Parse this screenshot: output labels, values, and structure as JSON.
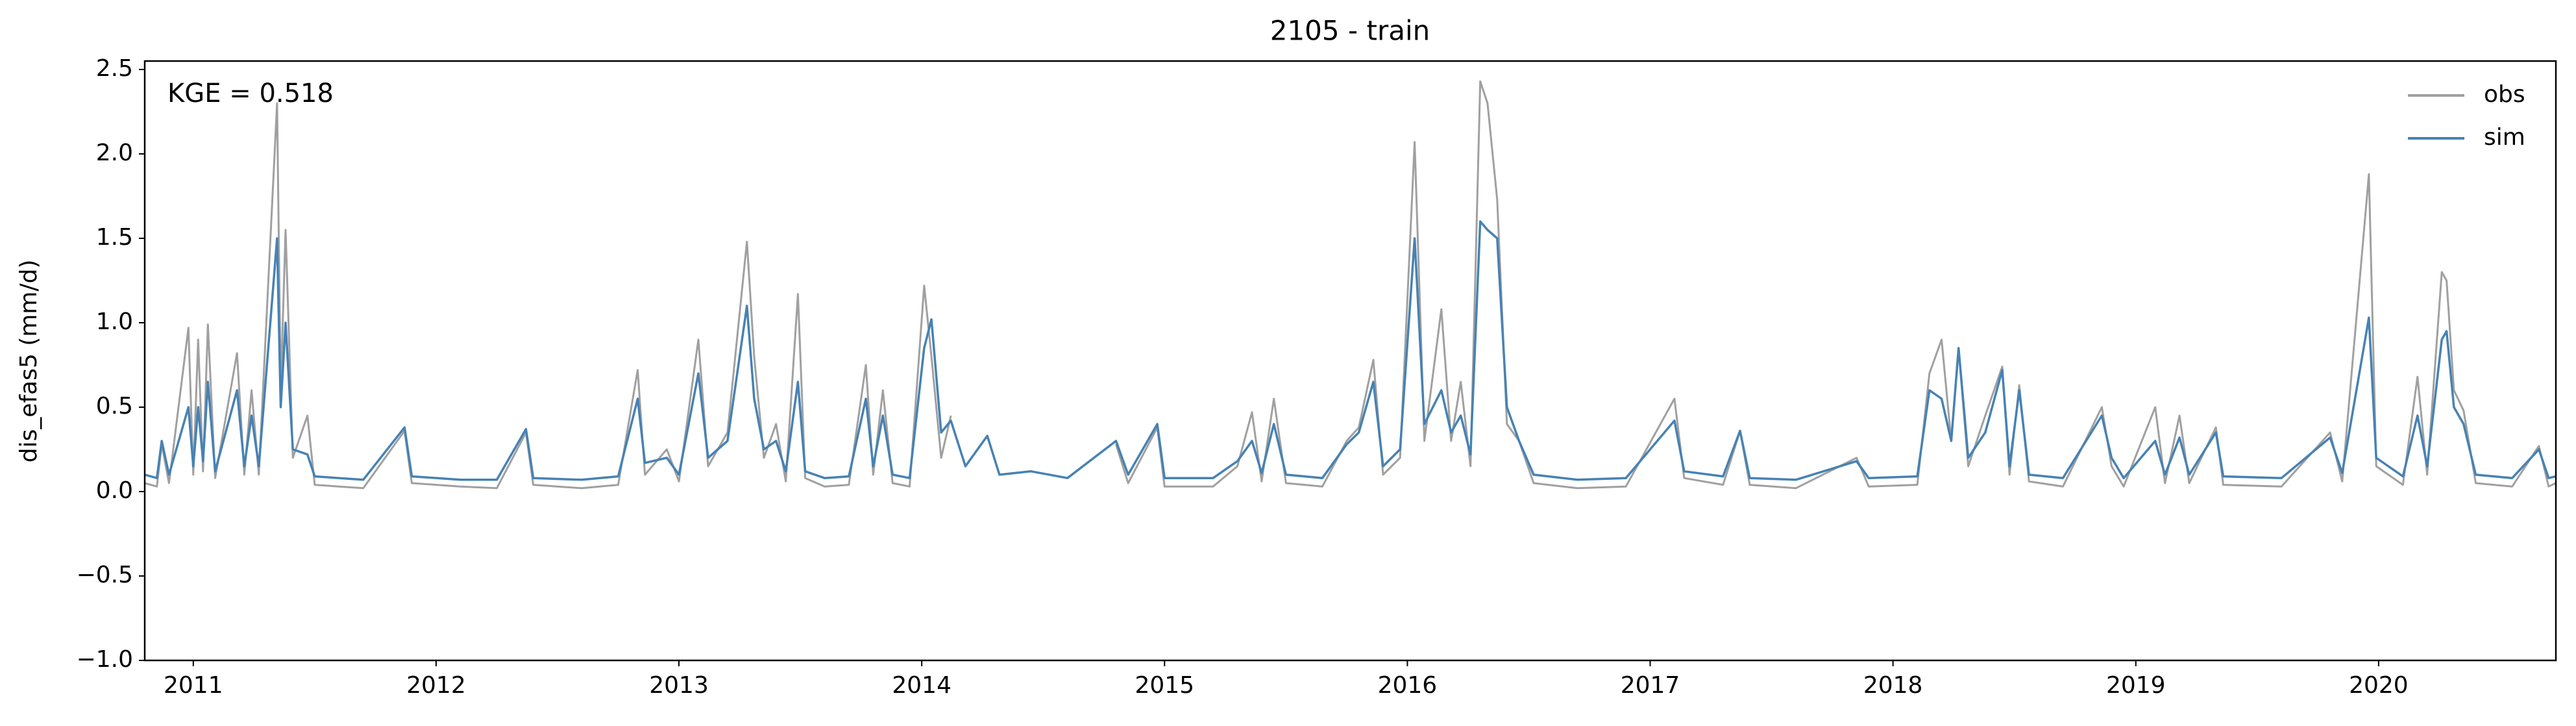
{
  "chart_data": {
    "type": "line",
    "title": "2105 - train",
    "ylabel": "dis_efas5 (mm/d)",
    "annotation": "KGE = 0.518",
    "legend": "upper right",
    "x": [
      2010.8,
      2010.85,
      2010.87,
      2010.9,
      2010.98,
      2011.0,
      2011.02,
      2011.04,
      2011.06,
      2011.09,
      2011.18,
      2011.21,
      2011.24,
      2011.27,
      2011.345,
      2011.36,
      2011.38,
      2011.41,
      2011.47,
      2011.5,
      2011.6,
      2011.7,
      2011.87,
      2011.9,
      2012.1,
      2012.25,
      2012.37,
      2012.4,
      2012.6,
      2012.75,
      2012.83,
      2012.86,
      2012.95,
      2013.0,
      2013.08,
      2013.12,
      2013.2,
      2013.28,
      2013.31,
      2013.35,
      2013.4,
      2013.44,
      2013.49,
      2013.52,
      2013.6,
      2013.7,
      2013.77,
      2013.8,
      2013.84,
      2013.88,
      2013.95,
      2014.01,
      2014.04,
      2014.08,
      2014.12,
      2014.18,
      2014.27,
      2014.32,
      2014.45,
      2014.6,
      2014.8,
      2014.85,
      2014.97,
      2015.0,
      2015.2,
      2015.3,
      2015.36,
      2015.4,
      2015.45,
      2015.5,
      2015.65,
      2015.75,
      2015.8,
      2015.86,
      2015.9,
      2015.97,
      2016.03,
      2016.07,
      2016.14,
      2016.18,
      2016.22,
      2016.26,
      2016.3,
      2016.33,
      2016.37,
      2016.41,
      2016.46,
      2016.52,
      2016.7,
      2016.9,
      2017.1,
      2017.14,
      2017.3,
      2017.37,
      2017.41,
      2017.6,
      2017.85,
      2017.9,
      2018.1,
      2018.15,
      2018.2,
      2018.24,
      2018.27,
      2018.31,
      2018.38,
      2018.45,
      2018.48,
      2018.52,
      2018.56,
      2018.7,
      2018.86,
      2018.9,
      2018.95,
      2019.08,
      2019.12,
      2019.18,
      2019.22,
      2019.33,
      2019.36,
      2019.6,
      2019.8,
      2019.85,
      2019.96,
      2019.99,
      2020.1,
      2020.16,
      2020.2,
      2020.26,
      2020.28,
      2020.31,
      2020.35,
      2020.4,
      2020.55,
      2020.66,
      2020.7,
      2020.73
    ],
    "series": [
      {
        "name": "obs",
        "color": "#a0a0a0",
        "values": [
          0.05,
          0.03,
          0.28,
          0.05,
          0.97,
          0.1,
          0.9,
          0.12,
          0.99,
          0.08,
          0.82,
          0.1,
          0.6,
          0.1,
          2.3,
          0.6,
          1.55,
          0.2,
          0.45,
          0.04,
          0.03,
          0.02,
          0.36,
          0.05,
          0.03,
          0.02,
          0.35,
          0.04,
          0.02,
          0.04,
          0.72,
          0.1,
          0.25,
          0.06,
          0.9,
          0.15,
          0.35,
          1.48,
          0.8,
          0.2,
          0.4,
          0.06,
          1.17,
          0.08,
          0.03,
          0.04,
          0.75,
          0.1,
          0.6,
          0.05,
          0.03,
          1.22,
          0.8,
          0.2,
          0.45,
          null,
          null,
          null,
          null,
          null,
          0.28,
          0.05,
          0.38,
          0.03,
          0.03,
          0.15,
          0.47,
          0.06,
          0.55,
          0.05,
          0.03,
          0.3,
          0.38,
          0.78,
          0.1,
          0.2,
          2.07,
          0.3,
          1.08,
          0.3,
          0.65,
          0.15,
          2.43,
          2.3,
          1.73,
          0.4,
          0.3,
          0.05,
          0.02,
          0.03,
          0.55,
          0.08,
          0.04,
          0.36,
          0.04,
          0.02,
          0.2,
          0.03,
          0.04,
          0.7,
          0.9,
          0.3,
          0.85,
          0.15,
          0.45,
          0.74,
          0.1,
          0.63,
          0.06,
          0.03,
          0.5,
          0.15,
          0.03,
          0.5,
          0.05,
          0.45,
          0.05,
          0.38,
          0.04,
          0.03,
          0.35,
          0.06,
          1.88,
          0.15,
          0.04,
          0.68,
          0.1,
          1.3,
          1.25,
          0.6,
          0.48,
          0.05,
          0.03,
          0.27,
          0.03,
          0.05
        ]
      },
      {
        "name": "sim",
        "color": "#4682b4",
        "values": [
          0.1,
          0.08,
          0.3,
          0.1,
          0.5,
          0.15,
          0.5,
          0.18,
          0.65,
          0.12,
          0.6,
          0.15,
          0.45,
          0.15,
          1.5,
          0.5,
          1.0,
          0.25,
          0.22,
          0.09,
          0.08,
          0.07,
          0.38,
          0.09,
          0.07,
          0.07,
          0.37,
          0.08,
          0.07,
          0.09,
          0.55,
          0.17,
          0.2,
          0.1,
          0.7,
          0.2,
          0.3,
          1.1,
          0.55,
          0.25,
          0.3,
          0.12,
          0.65,
          0.12,
          0.08,
          0.09,
          0.55,
          0.15,
          0.45,
          0.1,
          0.08,
          0.85,
          1.02,
          0.35,
          0.42,
          0.15,
          0.33,
          0.1,
          0.12,
          0.08,
          0.3,
          0.1,
          0.4,
          0.08,
          0.08,
          0.18,
          0.3,
          0.11,
          0.4,
          0.1,
          0.08,
          0.28,
          0.35,
          0.65,
          0.15,
          0.25,
          1.5,
          0.4,
          0.6,
          0.35,
          0.45,
          0.22,
          1.6,
          1.55,
          1.5,
          0.5,
          0.3,
          0.1,
          0.07,
          0.08,
          0.42,
          0.12,
          0.09,
          0.36,
          0.08,
          0.07,
          0.18,
          0.08,
          0.09,
          0.6,
          0.55,
          0.3,
          0.85,
          0.2,
          0.35,
          0.72,
          0.15,
          0.6,
          0.1,
          0.08,
          0.45,
          0.2,
          0.08,
          0.3,
          0.1,
          0.32,
          0.1,
          0.35,
          0.09,
          0.08,
          0.32,
          0.11,
          1.03,
          0.2,
          0.09,
          0.45,
          0.15,
          0.9,
          0.95,
          0.5,
          0.4,
          0.1,
          0.08,
          0.25,
          0.08,
          0.09
        ]
      }
    ],
    "xlim": [
      2010.8,
      2020.73
    ],
    "xticks": [
      2011,
      2012,
      2013,
      2014,
      2015,
      2016,
      2017,
      2018,
      2019,
      2020
    ],
    "ylim": [
      -1.0,
      2.55
    ],
    "yticks": [
      {
        "value": -1.0,
        "label": "−1.0"
      },
      {
        "value": -0.5,
        "label": "−0.5"
      },
      {
        "value": 0.0,
        "label": "0.0"
      },
      {
        "value": 0.5,
        "label": "0.5"
      },
      {
        "value": 1.0,
        "label": "1.0"
      },
      {
        "value": 1.5,
        "label": "1.5"
      },
      {
        "value": 2.0,
        "label": "2.0"
      },
      {
        "value": 2.5,
        "label": "2.5"
      }
    ]
  }
}
